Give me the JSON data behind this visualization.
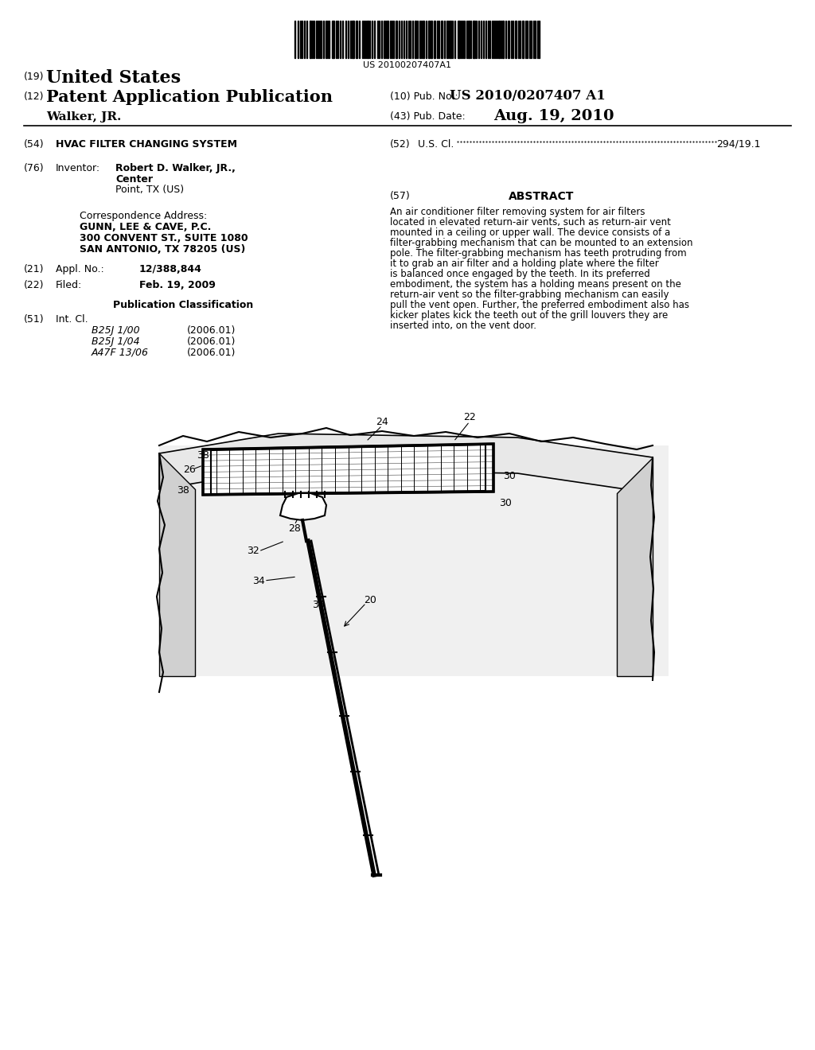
{
  "bg_color": "#ffffff",
  "barcode_text": "US 20100207407A1",
  "title_19": "(19) United States",
  "title_12": "(12) Patent Application Publication",
  "pub_no_label": "(10) Pub. No.:",
  "pub_no_value": "US 2010/0207407 A1",
  "pub_date_label": "(43) Pub. Date:",
  "pub_date_value": "Aug. 19, 2010",
  "inventor_line": "Walker, JR.",
  "field_54_label": "(54)",
  "field_54_value": "HVAC FILTER CHANGING SYSTEM",
  "field_76_label": "(76)",
  "field_76_name": "Inventor:",
  "field_76_value": "Robert D. Walker, JR., Center\nPoint, TX (US)",
  "corr_label": "Correspondence Address:",
  "corr_line1": "GUNN, LEE & CAVE, P.C.",
  "corr_line2": "300 CONVENT ST., SUITE 1080",
  "corr_line3": "SAN ANTONIO, TX 78205 (US)",
  "field_21_label": "(21)",
  "field_21_name": "Appl. No.:",
  "field_21_value": "12/388,844",
  "field_22_label": "(22)",
  "field_22_name": "Filed:",
  "field_22_value": "Feb. 19, 2009",
  "pub_class_label": "Publication Classification",
  "field_51_label": "(51)",
  "field_51_name": "Int. Cl.",
  "int_cl_entries": [
    [
      "B25J 1/00",
      "(2006.01)"
    ],
    [
      "B25J 1/04",
      "(2006.01)"
    ],
    [
      "A47F 13/06",
      "(2006.01)"
    ]
  ],
  "field_52_label": "(52)",
  "field_52_name": "U.S. Cl.",
  "field_52_value": "294/19.1",
  "field_57_label": "(57)",
  "abstract_title": "ABSTRACT",
  "abstract_text": "An air conditioner filter removing system for air filters located in elevated return-air vents, such as return-air vent mounted in a ceiling or upper wall. The device consists of a filter-grabbing mechanism that can be mounted to an extension pole. The filter-grabbing mechanism has teeth protruding from it to grab an air filter and a holding plate where the filter is balanced once engaged by the teeth. In its preferred embodiment, the system has a holding means present on the return-air vent so the filter-grabbing mechanism can easily pull the vent open. Further, the preferred embodiment also has kicker plates kick the teeth out of the grill louvers they are inserted into, on the vent door."
}
